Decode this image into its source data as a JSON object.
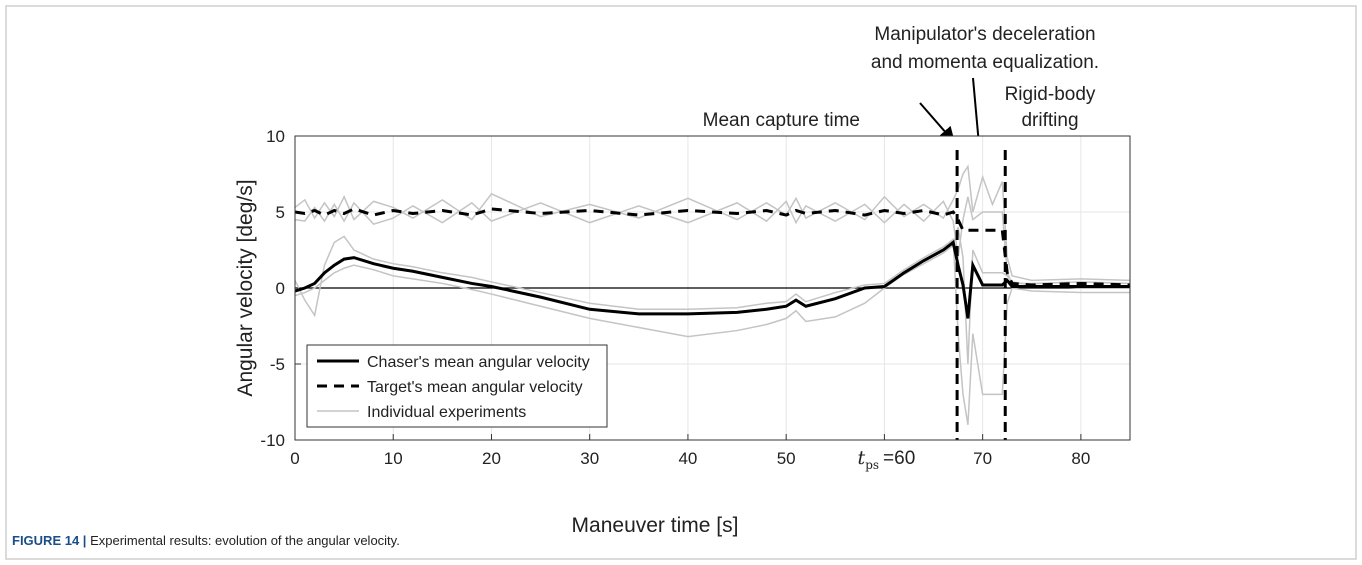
{
  "chart_data": {
    "type": "line",
    "xlabel": "Maneuver time [s]",
    "ylabel": "Angular velocity [deg/s]",
    "xlim": [
      0,
      85
    ],
    "ylim": [
      -10,
      10
    ],
    "xticks": [
      0,
      10,
      20,
      30,
      40,
      50,
      {
        "value": 60,
        "label": "=60",
        "symbol": "t",
        "subscript": "ps"
      },
      70,
      80
    ],
    "yticks": [
      -10,
      -5,
      0,
      5,
      10
    ],
    "grid": true,
    "legend": "lower left",
    "vlines": [
      67.4,
      72.3
    ],
    "annotations": [
      "Mean capture time",
      "Manipulator's deceleration",
      "and momenta equalization.",
      "Rigid-body",
      "drifting"
    ],
    "caption": {
      "label": "FIGURE 14 |",
      "text": "Experimental results: evolution of the angular velocity."
    },
    "x": [
      0,
      1,
      2,
      3,
      4,
      5,
      6,
      8,
      10,
      12,
      15,
      18,
      20,
      25,
      30,
      35,
      40,
      45,
      48,
      50,
      51,
      52,
      55,
      58,
      60,
      62,
      64,
      66,
      67,
      67.5,
      68,
      68.5,
      69,
      70,
      71,
      72,
      72.5,
      73,
      75,
      80,
      85
    ],
    "series": [
      {
        "name": "Individual experiments",
        "color": "#c4c4c4",
        "dash": false,
        "width": 1.5,
        "runs": [
          [
            5.3,
            5.8,
            4.6,
            5.6,
            4.7,
            6.0,
            4.5,
            5.7,
            5.3,
            4.6,
            5.8,
            4.5,
            6.2,
            4.7,
            5.5,
            4.6,
            5.9,
            4.5,
            5.6,
            4.8,
            5.9,
            4.6,
            5.6,
            4.5,
            6.0,
            4.7,
            5.5,
            4.6,
            5.8,
            6.5,
            7.5,
            8.0,
            5.0,
            7.3,
            5.5,
            7.0,
            2.0,
            0.8,
            0.5,
            0.6,
            0.5
          ],
          [
            4.5,
            4.4,
            5.3,
            4.4,
            5.5,
            4.4,
            5.6,
            4.2,
            4.6,
            5.4,
            4.3,
            5.6,
            4.4,
            5.6,
            4.3,
            5.4,
            4.3,
            5.6,
            4.4,
            5.7,
            4.3,
            5.4,
            4.4,
            5.5,
            4.3,
            5.5,
            4.4,
            5.7,
            4.4,
            2.0,
            4.5,
            6.0,
            4.5,
            5.0,
            5.0,
            5.0,
            1.0,
            0.3,
            0.3,
            0.4,
            0.3
          ],
          [
            0.5,
            -0.8,
            -1.8,
            1.5,
            3.0,
            3.4,
            2.5,
            1.9,
            1.6,
            1.4,
            1.0,
            0.7,
            0.4,
            -0.3,
            -1.0,
            -1.4,
            -1.4,
            -1.3,
            -1.0,
            -0.9,
            -0.4,
            -0.9,
            -0.3,
            0.2,
            0.3,
            1.2,
            2.0,
            2.7,
            3.2,
            -3.0,
            -7.0,
            -9.0,
            -3.0,
            -7.0,
            -7.0,
            -7.0,
            -1.0,
            0.0,
            -0.2,
            -0.3,
            -0.3
          ],
          [
            -0.5,
            -0.3,
            0.0,
            0.5,
            1.0,
            1.3,
            1.5,
            1.2,
            0.8,
            0.6,
            0.3,
            -0.1,
            -0.4,
            -1.2,
            -2.0,
            -2.6,
            -3.2,
            -2.8,
            -2.4,
            -2.0,
            -1.5,
            -2.2,
            -1.9,
            -1.0,
            0.0,
            0.9,
            1.6,
            2.3,
            2.8,
            4.0,
            2.0,
            -5.0,
            2.5,
            1.0,
            1.0,
            1.0,
            0.8,
            0.4,
            0.2,
            0.0,
            0.0
          ]
        ]
      },
      {
        "name": "Chaser's mean angular velocity",
        "color": "#000000",
        "dash": false,
        "width": 3,
        "values": [
          -0.2,
          0,
          0.3,
          1.0,
          1.5,
          1.9,
          2.0,
          1.6,
          1.3,
          1.1,
          0.7,
          0.3,
          0.1,
          -0.6,
          -1.4,
          -1.7,
          -1.7,
          -1.6,
          -1.4,
          -1.2,
          -0.8,
          -1.2,
          -0.7,
          0,
          0.1,
          1.0,
          1.8,
          2.5,
          3.0,
          1.5,
          0.2,
          -2.0,
          1.5,
          0.2,
          0.2,
          0.2,
          0.5,
          0.1,
          0.1,
          0.1,
          0.1
        ]
      },
      {
        "name": "Target's mean angular velocity",
        "color": "#000000",
        "dash": true,
        "width": 3,
        "values": [
          5.0,
          4.9,
          5.1,
          4.8,
          5.1,
          4.9,
          5.2,
          4.8,
          5.1,
          4.9,
          5.1,
          4.8,
          5.2,
          4.9,
          5.1,
          4.8,
          5.1,
          4.9,
          5.1,
          4.8,
          5.1,
          4.9,
          5.1,
          4.8,
          5.1,
          4.9,
          5.1,
          4.8,
          5.0,
          4.5,
          3.8,
          3.8,
          3.8,
          3.8,
          3.8,
          3.8,
          1.0,
          0.3,
          0.2,
          0.3,
          0.2
        ]
      }
    ]
  }
}
